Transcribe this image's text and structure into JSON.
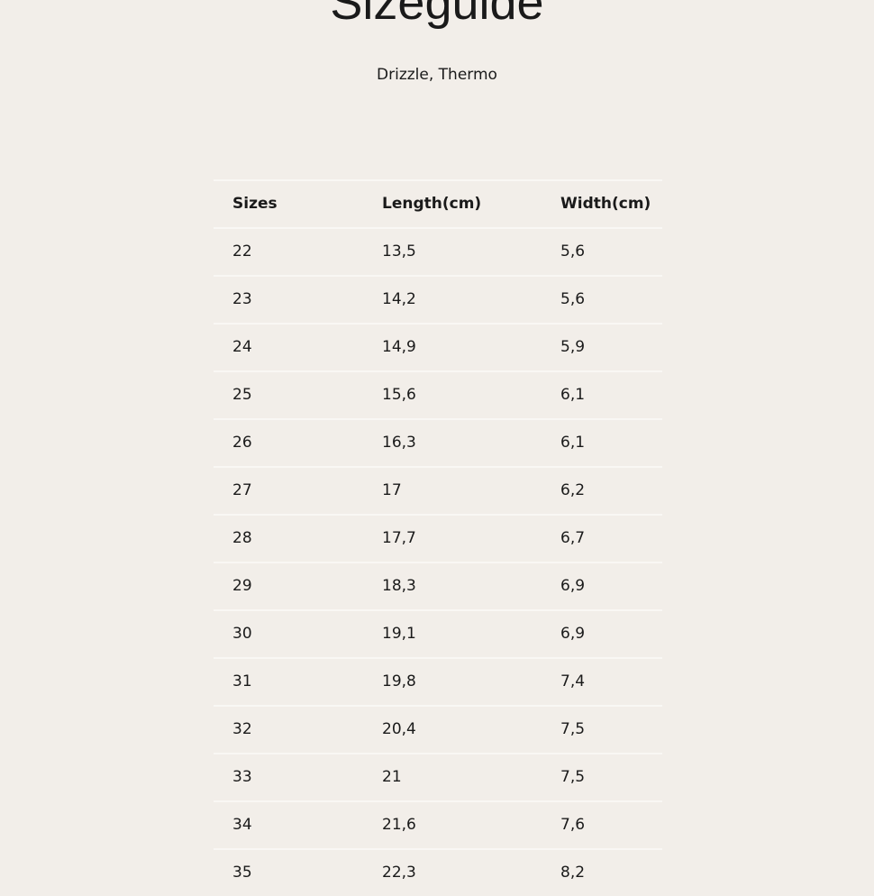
{
  "header": {
    "title": "Sizeguide",
    "subtitle": "Drizzle, Thermo"
  },
  "table": {
    "columns": [
      "Sizes",
      "Length(cm)",
      "Width(cm)"
    ],
    "rows": [
      [
        "22",
        "13,5",
        "5,6"
      ],
      [
        "23",
        "14,2",
        "5,6"
      ],
      [
        "24",
        "14,9",
        "5,9"
      ],
      [
        "25",
        "15,6",
        "6,1"
      ],
      [
        "26",
        "16,3",
        "6,1"
      ],
      [
        "27",
        "17",
        "6,2"
      ],
      [
        "28",
        "17,7",
        "6,7"
      ],
      [
        "29",
        "18,3",
        "6,9"
      ],
      [
        "30",
        "19,1",
        "6,9"
      ],
      [
        "31",
        "19,8",
        "7,4"
      ],
      [
        "32",
        "20,4",
        "7,5"
      ],
      [
        "33",
        "21",
        "7,5"
      ],
      [
        "34",
        "21,6",
        "7,6"
      ],
      [
        "35",
        "22,3",
        "8,2"
      ]
    ]
  }
}
